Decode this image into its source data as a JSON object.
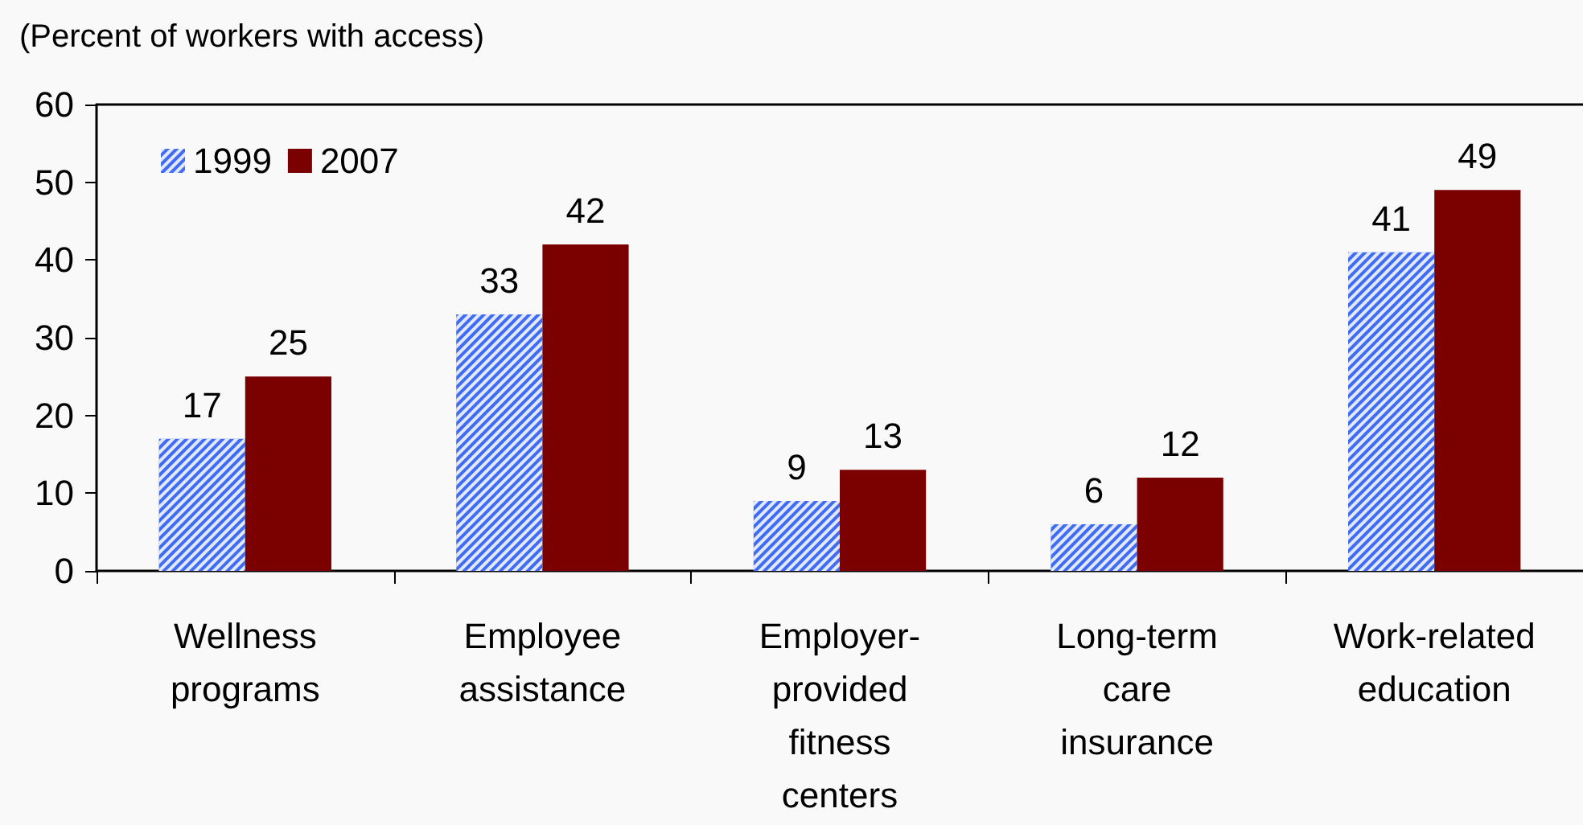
{
  "chart_data": {
    "type": "bar",
    "ylabel": "(Percent of workers with access)",
    "categories": [
      "Wellness programs",
      "Employee assistance",
      "Employer-provided fitness centers",
      "Long-term care insurance",
      "Work-related education"
    ],
    "series": [
      {
        "name": "1999",
        "color": "#3f6cf2",
        "values": [
          17,
          33,
          9,
          6,
          41
        ]
      },
      {
        "name": "2007",
        "color": "#7b0000",
        "values": [
          25,
          42,
          13,
          12,
          49
        ]
      }
    ],
    "ylim": [
      0,
      60
    ],
    "yticks": [
      0,
      10,
      20,
      30,
      40,
      50,
      60
    ],
    "data_labels": true,
    "legend": "top left"
  }
}
